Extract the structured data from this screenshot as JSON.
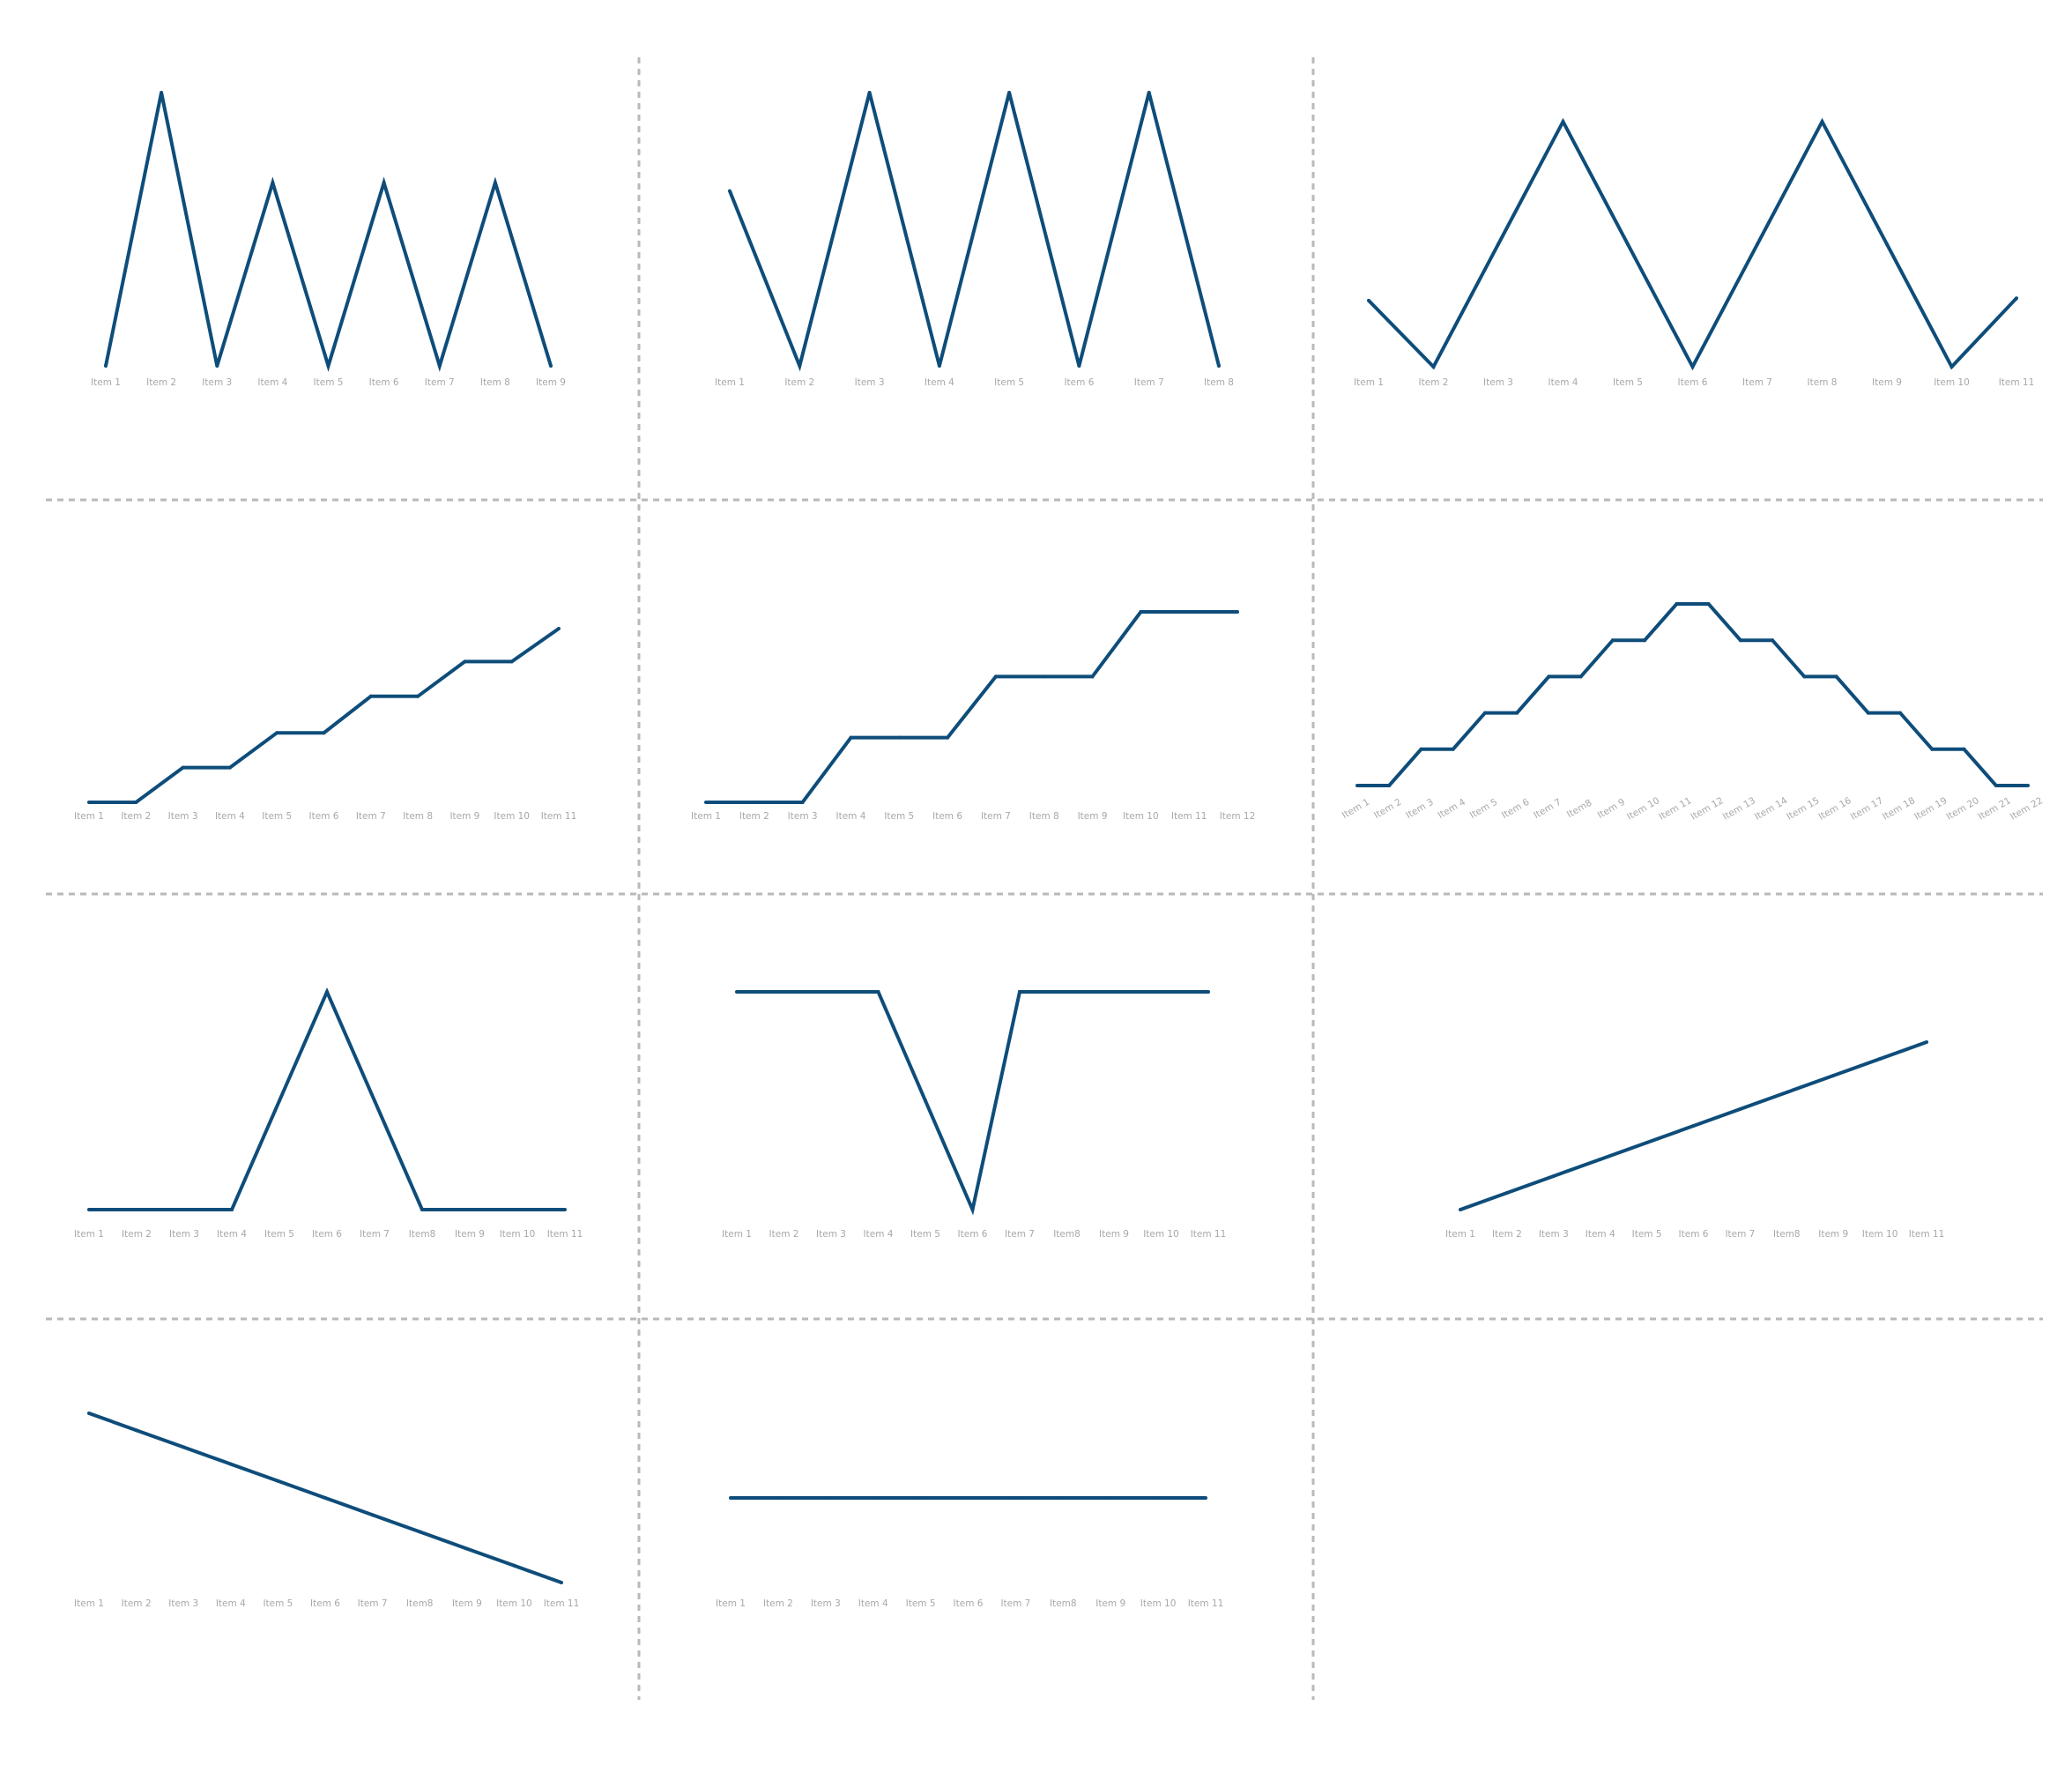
{
  "colors": {
    "line": "#0e4d7a",
    "tick_label": "#a8a8a8",
    "divider": "#b9b9b9",
    "background": "#ffffff"
  },
  "chart_data": [
    {
      "type": "line",
      "categories": [
        "Item 1",
        "Item 2",
        "Item 3",
        "Item 4",
        "Item 5",
        "Item 6",
        "Item 7",
        "Item 8",
        "Item 9"
      ],
      "values": [
        0,
        100,
        0,
        67,
        0,
        67,
        0,
        67,
        0
      ],
      "ylim": [
        0,
        100
      ],
      "grid": false,
      "legend": "none"
    },
    {
      "type": "line",
      "categories": [
        "Item 1",
        "Item 2",
        "Item 3",
        "Item 4",
        "Item 5",
        "Item 6",
        "Item 7",
        "Item 8"
      ],
      "values": [
        64,
        0,
        100,
        0,
        100,
        0,
        100,
        0
      ],
      "ylim": [
        0,
        100
      ],
      "grid": false,
      "legend": "none"
    },
    {
      "type": "line",
      "categories": [
        "Item 1",
        "Item 2",
        "Item 3",
        "Item 4",
        "Item 5",
        "Item 6",
        "Item 7",
        "Item 8",
        "Item 9",
        "Item 10",
        "Item 11"
      ],
      "values": [
        27,
        0,
        50,
        100,
        50,
        0,
        50,
        100,
        50,
        0,
        28
      ],
      "ylim": [
        0,
        100
      ],
      "grid": false,
      "legend": "none"
    },
    {
      "type": "line",
      "categories": [
        "Item 1",
        "Item 2",
        "Item 3",
        "Item 4",
        "Item 5",
        "Item 6",
        "Item 7",
        "Item 8",
        "Item 9",
        "Item 10",
        "Item 11"
      ],
      "values": [
        0,
        0,
        20,
        20,
        40,
        40,
        61,
        61,
        81,
        81,
        100
      ],
      "ylim": [
        0,
        100
      ],
      "grid": false,
      "legend": "none"
    },
    {
      "type": "line",
      "categories": [
        "Item 1",
        "Item 2",
        "Item 3",
        "Item 4",
        "Item 5",
        "Item 6",
        "Item 7",
        "Item 8",
        "Item 9",
        "Item 10",
        "Item 11",
        "Item 12"
      ],
      "values": [
        0,
        0,
        0,
        34,
        34,
        34,
        66,
        66,
        66,
        100,
        100,
        100
      ],
      "ylim": [
        0,
        100
      ],
      "grid": false,
      "legend": "none"
    },
    {
      "type": "line",
      "categories": [
        "Item 1",
        "Item 2",
        "Item 3",
        "Item 4",
        "Item 5",
        "Item 6",
        "Item 7",
        "Item8",
        "Item 9",
        "Item 10",
        "Item 11",
        "Item 12",
        "Item 13",
        "Item 14",
        "Item 15",
        "Item 16",
        "Item 17",
        "Item 18",
        "Item 19",
        "Item 20",
        "Item 21",
        "Item 22"
      ],
      "values": [
        0,
        0,
        20,
        20,
        40,
        40,
        60,
        60,
        80,
        80,
        100,
        100,
        80,
        80,
        60,
        60,
        40,
        40,
        20,
        20,
        0,
        0
      ],
      "ylim": [
        0,
        100
      ],
      "grid": false,
      "legend": "none"
    },
    {
      "type": "line",
      "categories": [
        "Item 1",
        "Item 2",
        "Item 3",
        "Item 4",
        "Item 5",
        "Item 6",
        "Item 7",
        "Item8",
        "Item 9",
        "Item 10",
        "Item 11"
      ],
      "values": [
        0,
        0,
        0,
        0,
        50,
        100,
        50,
        0,
        0,
        0,
        0
      ],
      "ylim": [
        0,
        100
      ],
      "grid": false,
      "legend": "none"
    },
    {
      "type": "line",
      "categories": [
        "Item 1",
        "Item 2",
        "Item 3",
        "Item 4",
        "Item 5",
        "Item 6",
        "Item 7",
        "Item8",
        "Item 9",
        "Item 10",
        "Item 11"
      ],
      "values": [
        100,
        100,
        100,
        100,
        50,
        0,
        100,
        100,
        100,
        100,
        100
      ],
      "ylim": [
        0,
        100
      ],
      "grid": false,
      "legend": "none"
    },
    {
      "type": "line",
      "categories": [
        "Item 1",
        "Item 2",
        "Item 3",
        "Item 4",
        "Item 5",
        "Item 6",
        "Item 7",
        "Item8",
        "Item 9",
        "Item 10",
        "Item 11"
      ],
      "values": [
        0,
        10,
        20,
        30,
        40,
        50,
        60,
        70,
        80,
        90,
        100
      ],
      "ylim": [
        0,
        100
      ],
      "grid": false,
      "legend": "none"
    },
    {
      "type": "line",
      "categories": [
        "Item 1",
        "Item 2",
        "Item 3",
        "Item 4",
        "Item 5",
        "Item 6",
        "Item 7",
        "Item8",
        "Item 9",
        "Item 10",
        "Item 11"
      ],
      "values": [
        100,
        90,
        80,
        70,
        60,
        50,
        40,
        30,
        20,
        10,
        0
      ],
      "ylim": [
        0,
        100
      ],
      "grid": false,
      "legend": "none"
    },
    {
      "type": "line",
      "categories": [
        "Item 1",
        "Item 2",
        "Item 3",
        "Item 4",
        "Item 5",
        "Item 6",
        "Item 7",
        "Item8",
        "Item 9",
        "Item 10",
        "Item 11"
      ],
      "values": [
        50,
        50,
        50,
        50,
        50,
        50,
        50,
        50,
        50,
        50,
        50
      ],
      "ylim": [
        0,
        100
      ],
      "grid": false,
      "legend": "none"
    }
  ]
}
